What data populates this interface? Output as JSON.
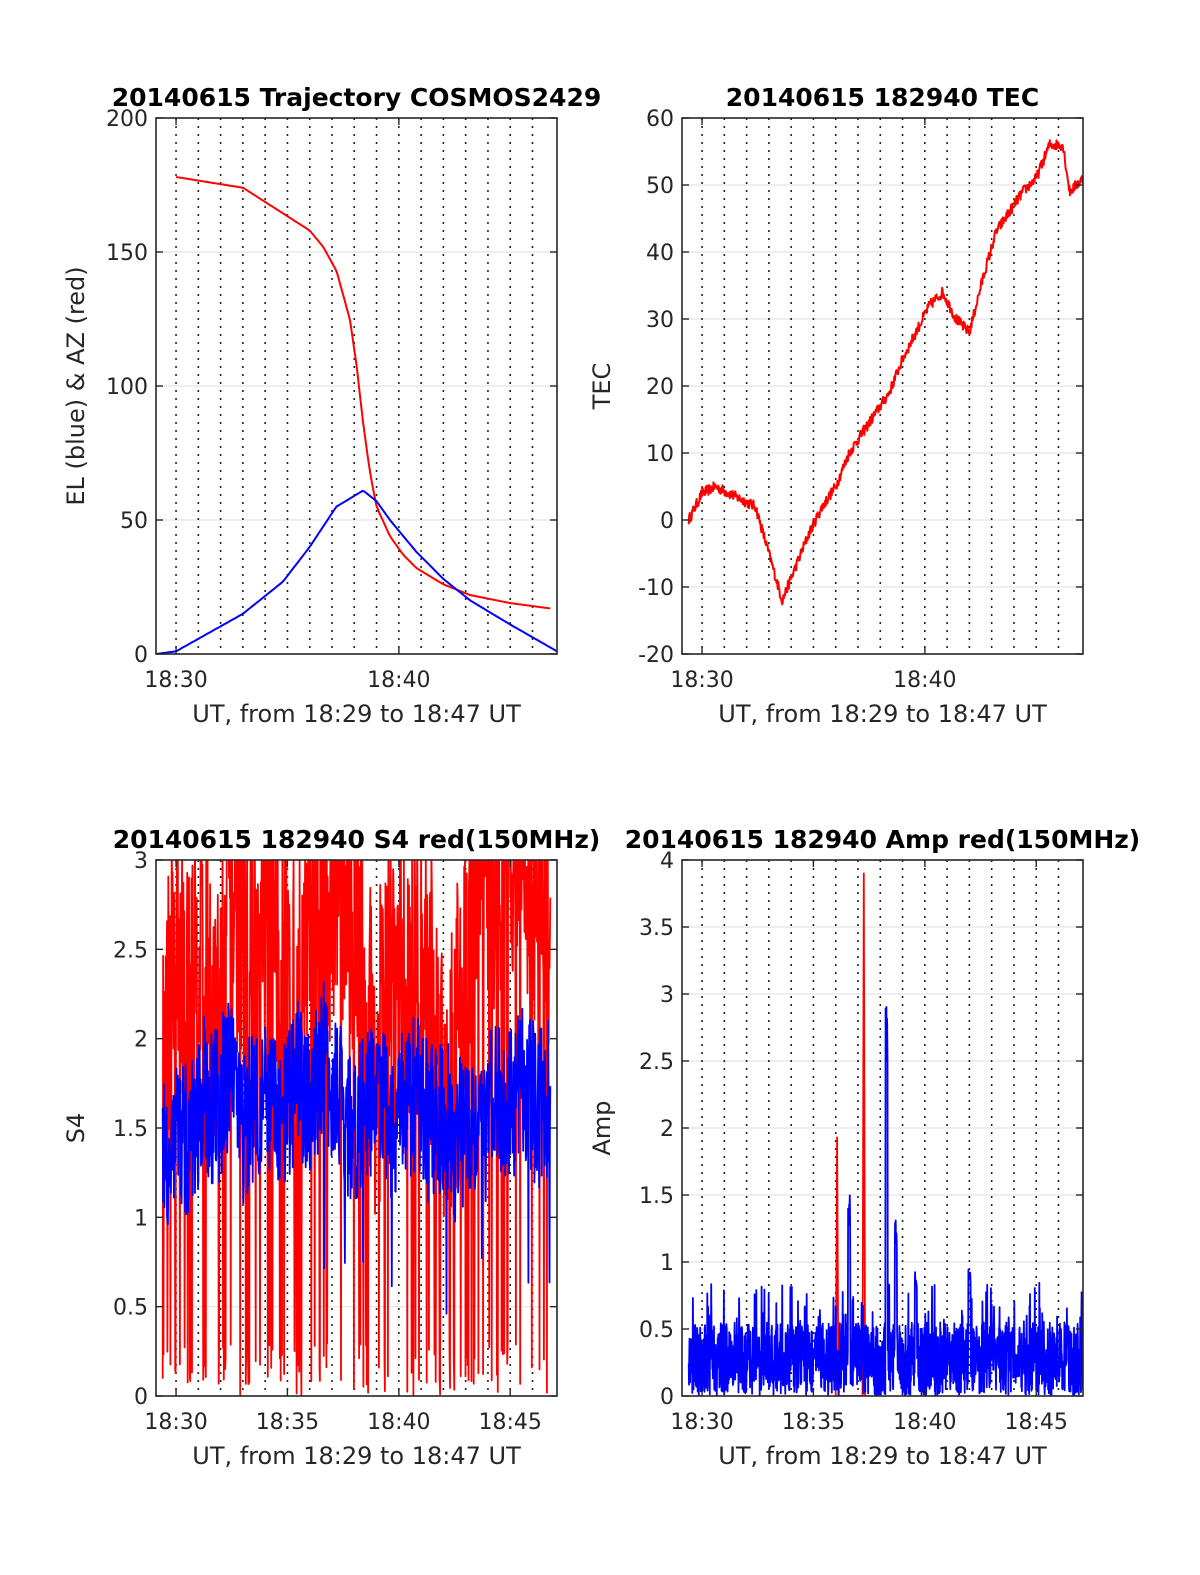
{
  "chart_data": [
    {
      "type": "line",
      "title": "20140615 Trajectory COSMOS2429",
      "xlabel": "UT, from 18:29 to 18:47 UT",
      "ylabel": "EL (blue) & AZ (red)",
      "xlim": [
        18.485,
        18.785
      ],
      "ylim": [
        0,
        200
      ],
      "xticks": [
        {
          "v": 18.5,
          "label": "18:30"
        },
        {
          "v": 18.6667,
          "label": "18:40"
        }
      ],
      "yticks": [
        0,
        50,
        100,
        150,
        200
      ],
      "grid": "on",
      "series": [
        {
          "color": "#ff0000",
          "x": [
            18.5,
            18.55,
            18.6,
            18.61,
            18.62,
            18.63,
            18.635,
            18.64,
            18.645,
            18.65,
            18.66,
            18.67,
            18.68,
            18.7,
            18.72,
            18.75,
            18.78
          ],
          "y": [
            178,
            174,
            158,
            152,
            143,
            125,
            108,
            86,
            68,
            55,
            44,
            37,
            32,
            26,
            22,
            19,
            17
          ]
        },
        {
          "color": "#0000ff",
          "x": [
            18.485,
            18.5,
            18.55,
            18.58,
            18.6,
            18.62,
            18.64,
            18.65,
            18.66,
            18.68,
            18.7,
            18.72,
            18.75,
            18.785
          ],
          "y": [
            0,
            1,
            15,
            27,
            40,
            55,
            61,
            57,
            50,
            38,
            28,
            20,
            11,
            1
          ]
        }
      ]
    },
    {
      "type": "line",
      "title": "20140615 182940 TEC",
      "xlabel": "UT, from 18:29 to 18:47 UT",
      "ylabel": "TEC",
      "xlim": [
        18.485,
        18.785
      ],
      "ylim": [
        -20,
        60
      ],
      "xticks": [
        {
          "v": 18.5,
          "label": "18:30"
        },
        {
          "v": 18.6667,
          "label": "18:40"
        }
      ],
      "yticks": [
        -20,
        -10,
        0,
        10,
        20,
        30,
        40,
        50,
        60
      ],
      "grid": "on",
      "series": [
        {
          "color": "#ff0000",
          "x": [
            18.49,
            18.5,
            18.51,
            18.52,
            18.53,
            18.54,
            18.55,
            18.56,
            18.57,
            18.58,
            18.59,
            18.6,
            18.61,
            18.62,
            18.63,
            18.64,
            18.65,
            18.66,
            18.67,
            18.68,
            18.69,
            18.7,
            18.705,
            18.71,
            18.72,
            18.73,
            18.74,
            18.75,
            18.76,
            18.77,
            18.775,
            18.785
          ],
          "y": [
            0,
            4,
            5,
            4,
            3,
            2,
            -5,
            -12,
            -7,
            -2,
            2,
            5,
            10,
            13,
            16,
            19,
            24,
            28,
            32,
            34,
            30,
            28,
            32,
            36,
            43,
            46,
            49,
            51,
            56,
            56,
            49,
            51
          ]
        }
      ]
    },
    {
      "type": "line",
      "title": "20140615 182940 S4 red(150MHz)",
      "xlabel": "UT, from 18:29 to 18:47 UT",
      "ylabel": "S4",
      "xlim": [
        18.485,
        18.785
      ],
      "ylim": [
        0,
        3
      ],
      "xticks": [
        {
          "v": 18.5,
          "label": "18:30"
        },
        {
          "v": 18.5833,
          "label": "18:35"
        },
        {
          "v": 18.6667,
          "label": "18:40"
        },
        {
          "v": 18.75,
          "label": "18:45"
        }
      ],
      "yticks": [
        0,
        0.5,
        1,
        1.5,
        2,
        2.5,
        3
      ],
      "grid": "on",
      "series": [
        {
          "color": "#ff0000",
          "x": [
            18.49,
            18.5,
            18.51,
            18.52,
            18.53,
            18.54,
            18.55,
            18.56,
            18.57,
            18.58,
            18.59,
            18.6,
            18.61,
            18.62,
            18.63,
            18.64,
            18.65,
            18.66,
            18.67,
            18.68,
            18.69,
            18.7,
            18.71,
            18.72,
            18.73,
            18.74,
            18.75,
            18.76,
            18.77,
            18.78
          ],
          "y": [
            1.5,
            2.2,
            1.8,
            2.4,
            1.6,
            2.6,
            2.3,
            1.9,
            2.7,
            2.0,
            1.7,
            2.5,
            2.1,
            2.8,
            2.4,
            1.9,
            1.5,
            2.0,
            1.8,
            2.2,
            1.9,
            1.4,
            1.7,
            2.4,
            2.8,
            2.6,
            2.9,
            2.7,
            2.5,
            2.3
          ]
        },
        {
          "color": "#0000ff",
          "x": [
            18.49,
            18.5,
            18.51,
            18.52,
            18.53,
            18.54,
            18.55,
            18.56,
            18.57,
            18.58,
            18.59,
            18.6,
            18.61,
            18.62,
            18.63,
            18.64,
            18.65,
            18.66,
            18.67,
            18.68,
            18.69,
            18.7,
            18.71,
            18.72,
            18.73,
            18.74,
            18.75,
            18.76,
            18.77,
            18.78
          ],
          "y": [
            1.3,
            1.5,
            1.4,
            1.7,
            1.6,
            1.8,
            1.5,
            1.7,
            1.6,
            1.5,
            1.8,
            1.6,
            1.9,
            1.7,
            1.5,
            1.6,
            1.7,
            1.5,
            1.6,
            1.7,
            1.5,
            1.6,
            1.4,
            1.6,
            1.5,
            1.7,
            1.6,
            1.8,
            1.6,
            1.7
          ]
        }
      ]
    },
    {
      "type": "line",
      "title": "20140615 182940 Amp red(150MHz)",
      "xlabel": "UT, from 18:29 to 18:47 UT",
      "ylabel": "Amp",
      "xlim": [
        18.485,
        18.785
      ],
      "ylim": [
        0,
        4
      ],
      "xticks": [
        {
          "v": 18.5,
          "label": "18:30"
        },
        {
          "v": 18.5833,
          "label": "18:35"
        },
        {
          "v": 18.6667,
          "label": "18:40"
        },
        {
          "v": 18.75,
          "label": "18:45"
        }
      ],
      "yticks": [
        0,
        0.5,
        1,
        1.5,
        2,
        2.5,
        3,
        3.5,
        4
      ],
      "grid": "on",
      "series": [
        {
          "color": "#ff0000",
          "x": [
            18.6,
            18.601,
            18.602,
            18.62,
            18.621,
            18.622
          ],
          "y": [
            0,
            1.93,
            0,
            0,
            3.9,
            0
          ]
        },
        {
          "color": "#0000ff",
          "x": [
            18.49,
            18.61,
            18.62,
            18.638,
            18.645,
            18.66,
            18.7,
            18.71,
            18.785
          ],
          "y": [
            0.5,
            1.5,
            0.6,
            2.93,
            1.33,
            0.95,
            1.0,
            0.7,
            0.8
          ]
        }
      ]
    }
  ]
}
